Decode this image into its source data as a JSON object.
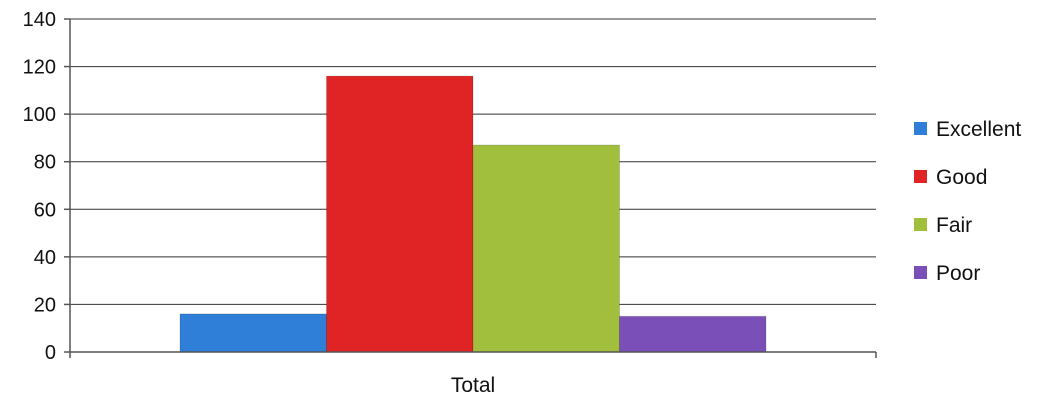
{
  "chart_data": {
    "type": "bar",
    "title": "",
    "xlabel": "",
    "ylabel": "",
    "categories": [
      "Total"
    ],
    "ylim": [
      0,
      140
    ],
    "yticks": [
      0,
      20,
      40,
      60,
      80,
      100,
      120,
      140
    ],
    "grid": true,
    "legend_position": "right",
    "series": [
      {
        "name": "Excellent",
        "values": [
          16
        ],
        "color": "#2f7ed8"
      },
      {
        "name": "Good",
        "values": [
          116
        ],
        "color": "#e02426"
      },
      {
        "name": "Fair",
        "values": [
          87
        ],
        "color": "#a1bf3c"
      },
      {
        "name": "Poor",
        "values": [
          15
        ],
        "color": "#7b4fb8"
      }
    ]
  }
}
